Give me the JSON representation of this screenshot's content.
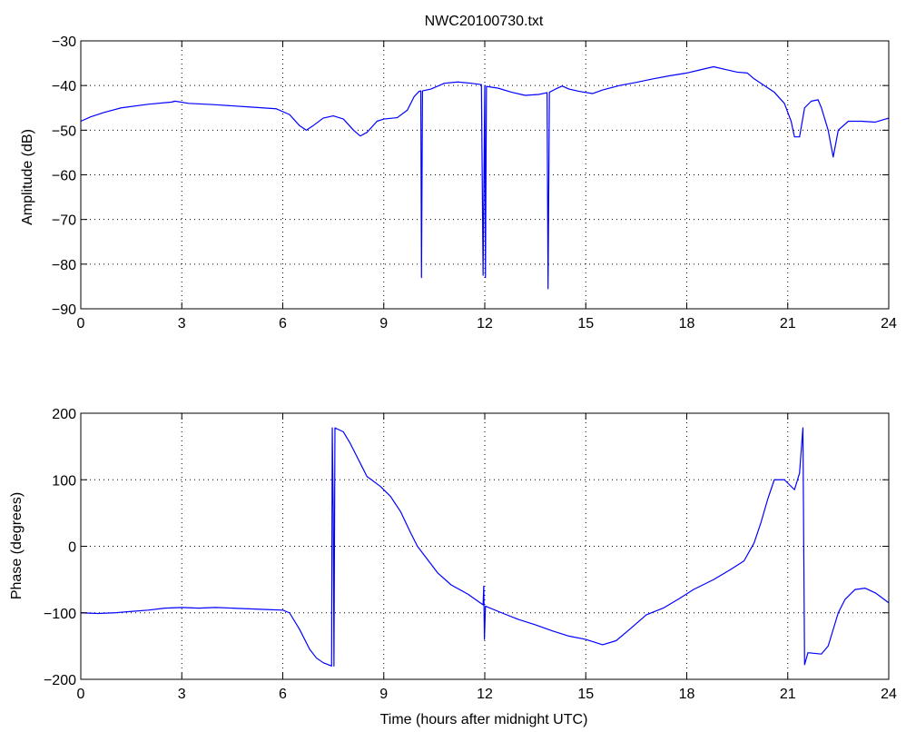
{
  "figure": {
    "title": "NWC20100730.txt",
    "series_color": "#0000ff"
  },
  "chart_data": [
    {
      "type": "line",
      "title": "NWC20100730.txt",
      "xlabel": "",
      "ylabel": "Amplitude (dB)",
      "xlim": [
        0,
        24
      ],
      "ylim": [
        -90,
        -30
      ],
      "xticks": [
        0,
        3,
        6,
        9,
        12,
        15,
        18,
        21,
        24
      ],
      "yticks": [
        -90,
        -80,
        -70,
        -60,
        -50,
        -40,
        -30
      ],
      "grid": true,
      "series": [
        {
          "color": "#0000ff",
          "points": [
            [
              0,
              -48
            ],
            [
              0.3,
              -47
            ],
            [
              0.7,
              -46
            ],
            [
              1.2,
              -45
            ],
            [
              2.0,
              -44.2
            ],
            [
              2.7,
              -43.7
            ],
            [
              2.8,
              -43.5
            ],
            [
              3.2,
              -44
            ],
            [
              4.0,
              -44.3
            ],
            [
              5.0,
              -44.8
            ],
            [
              5.8,
              -45.2
            ],
            [
              6.2,
              -46.5
            ],
            [
              6.5,
              -49
            ],
            [
              6.7,
              -50
            ],
            [
              6.9,
              -49
            ],
            [
              7.2,
              -47.3
            ],
            [
              7.5,
              -46.8
            ],
            [
              7.8,
              -47.5
            ],
            [
              8.1,
              -50
            ],
            [
              8.3,
              -51.3
            ],
            [
              8.5,
              -50.5
            ],
            [
              8.8,
              -48
            ],
            [
              9.0,
              -47.5
            ],
            [
              9.4,
              -47.2
            ],
            [
              9.7,
              -45.5
            ],
            [
              9.9,
              -42.5
            ],
            [
              10.05,
              -41.3
            ],
            [
              10.1,
              -41.2
            ],
            [
              10.12,
              -83
            ],
            [
              10.15,
              -41.2
            ],
            [
              10.4,
              -40.8
            ],
            [
              10.8,
              -39.5
            ],
            [
              11.2,
              -39.2
            ],
            [
              11.6,
              -39.5
            ],
            [
              11.9,
              -39.8
            ],
            [
              11.95,
              -82.5
            ],
            [
              12.0,
              -40
            ],
            [
              12.02,
              -83
            ],
            [
              12.05,
              -40.2
            ],
            [
              12.4,
              -40.6
            ],
            [
              12.8,
              -41.5
            ],
            [
              13.2,
              -42.2
            ],
            [
              13.6,
              -42
            ],
            [
              13.85,
              -41.6
            ],
            [
              13.88,
              -85.5
            ],
            [
              13.92,
              -41.5
            ],
            [
              14.1,
              -40.8
            ],
            [
              14.3,
              -40.1
            ],
            [
              14.5,
              -40.8
            ],
            [
              14.8,
              -41.3
            ],
            [
              15.2,
              -41.8
            ],
            [
              15.5,
              -41
            ],
            [
              16.0,
              -40
            ],
            [
              16.5,
              -39.3
            ],
            [
              17.0,
              -38.5
            ],
            [
              17.5,
              -37.8
            ],
            [
              18.0,
              -37.2
            ],
            [
              18.5,
              -36.3
            ],
            [
              18.8,
              -35.8
            ],
            [
              19.2,
              -36.5
            ],
            [
              19.5,
              -37
            ],
            [
              19.8,
              -37.2
            ],
            [
              20.0,
              -38.5
            ],
            [
              20.3,
              -40
            ],
            [
              20.6,
              -41.5
            ],
            [
              20.9,
              -44
            ],
            [
              21.1,
              -48
            ],
            [
              21.2,
              -51.5
            ],
            [
              21.35,
              -51.5
            ],
            [
              21.5,
              -45
            ],
            [
              21.7,
              -43.5
            ],
            [
              21.9,
              -43.2
            ],
            [
              22.0,
              -45
            ],
            [
              22.2,
              -50
            ],
            [
              22.35,
              -56
            ],
            [
              22.5,
              -50
            ],
            [
              22.8,
              -48
            ],
            [
              23.2,
              -48
            ],
            [
              23.6,
              -48.2
            ],
            [
              24,
              -47.3
            ]
          ]
        }
      ]
    },
    {
      "type": "line",
      "title": "",
      "xlabel": "Time (hours after midnight UTC)",
      "ylabel": "Phase (degrees)",
      "xlim": [
        0,
        24
      ],
      "ylim": [
        -200,
        200
      ],
      "xticks": [
        0,
        3,
        6,
        9,
        12,
        15,
        18,
        21,
        24
      ],
      "yticks": [
        -200,
        -100,
        0,
        100,
        200
      ],
      "grid": true,
      "series": [
        {
          "color": "#0000ff",
          "points": [
            [
              0,
              -100
            ],
            [
              0.5,
              -101
            ],
            [
              1.0,
              -100
            ],
            [
              1.5,
              -98
            ],
            [
              2.0,
              -96
            ],
            [
              2.5,
              -93
            ],
            [
              3.0,
              -92
            ],
            [
              3.5,
              -93
            ],
            [
              4.0,
              -92
            ],
            [
              4.5,
              -93
            ],
            [
              5.0,
              -94
            ],
            [
              5.5,
              -95
            ],
            [
              6.0,
              -96
            ],
            [
              6.2,
              -100
            ],
            [
              6.5,
              -125
            ],
            [
              6.8,
              -155
            ],
            [
              7.0,
              -168
            ],
            [
              7.2,
              -175
            ],
            [
              7.45,
              -180
            ],
            [
              7.47,
              178
            ],
            [
              7.5,
              50
            ],
            [
              7.52,
              -180
            ],
            [
              7.55,
              178
            ],
            [
              7.8,
              172
            ],
            [
              8.0,
              155
            ],
            [
              8.3,
              125
            ],
            [
              8.5,
              105
            ],
            [
              8.9,
              90
            ],
            [
              9.2,
              75
            ],
            [
              9.5,
              52
            ],
            [
              9.8,
              20
            ],
            [
              10.0,
              0
            ],
            [
              10.3,
              -20
            ],
            [
              10.6,
              -40
            ],
            [
              11.0,
              -58
            ],
            [
              11.5,
              -72
            ],
            [
              11.95,
              -88
            ],
            [
              11.97,
              -60
            ],
            [
              11.99,
              -140
            ],
            [
              12.02,
              -90
            ],
            [
              12.5,
              -100
            ],
            [
              13.0,
              -110
            ],
            [
              13.5,
              -118
            ],
            [
              14.0,
              -127
            ],
            [
              14.5,
              -135
            ],
            [
              15.0,
              -140
            ],
            [
              15.5,
              -148
            ],
            [
              15.9,
              -142
            ],
            [
              16.3,
              -125
            ],
            [
              16.8,
              -103
            ],
            [
              17.3,
              -93
            ],
            [
              17.8,
              -78
            ],
            [
              18.2,
              -65
            ],
            [
              18.8,
              -50
            ],
            [
              19.3,
              -35
            ],
            [
              19.7,
              -22
            ],
            [
              20.0,
              5
            ],
            [
              20.2,
              35
            ],
            [
              20.4,
              70
            ],
            [
              20.6,
              100
            ],
            [
              20.9,
              100
            ],
            [
              21.2,
              85
            ],
            [
              21.35,
              110
            ],
            [
              21.45,
              178
            ],
            [
              21.5,
              -178
            ],
            [
              21.6,
              -160
            ],
            [
              22.0,
              -162
            ],
            [
              22.2,
              -150
            ],
            [
              22.5,
              -100
            ],
            [
              22.7,
              -80
            ],
            [
              23.0,
              -65
            ],
            [
              23.3,
              -63
            ],
            [
              23.6,
              -70
            ],
            [
              24,
              -85
            ]
          ]
        }
      ]
    }
  ]
}
